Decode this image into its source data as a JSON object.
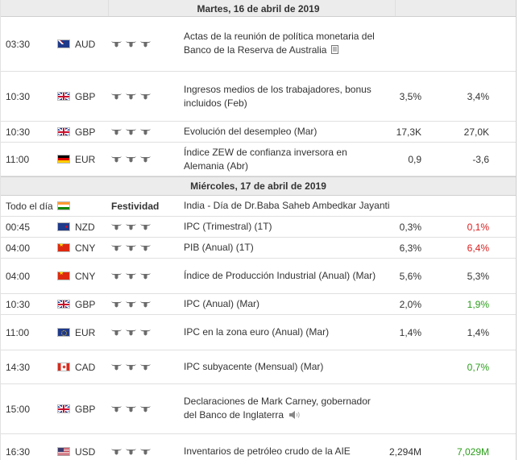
{
  "days": [
    {
      "header": "Martes, 16 de abril de 2019",
      "rows": [
        {
          "time": "03:30",
          "flag": "au",
          "currency": "AUD",
          "event": "Actas de la reunión de política monetaria del Banco de la Reserva de Australia",
          "icon": "document-icon",
          "actual": "",
          "forecast": "",
          "forecast_color": ""
        },
        {
          "time": "10:30",
          "flag": "gb",
          "currency": "GBP",
          "event": "Ingresos medios de los trabajadores, bonus incluidos (Feb)",
          "icon": "",
          "actual": "3,5%",
          "forecast": "3,4%",
          "forecast_color": ""
        },
        {
          "time": "10:30",
          "flag": "gb",
          "currency": "GBP",
          "event": "Evolución del desempleo (Mar)",
          "icon": "",
          "actual": "17,3K",
          "forecast": "27,0K",
          "forecast_color": ""
        },
        {
          "time": "11:00",
          "flag": "de",
          "currency": "EUR",
          "event": "Índice ZEW de confianza inversora en Alemania (Abr)",
          "icon": "",
          "actual": "0,9",
          "forecast": "-3,6",
          "forecast_color": ""
        }
      ]
    },
    {
      "header": "Miércoles, 17 de abril de 2019",
      "holiday": {
        "time": "Todo el día",
        "flag": "in",
        "label": "Festividad",
        "event": "India - Día de Dr.Baba Saheb Ambedkar Jayanti"
      },
      "rows": [
        {
          "time": "00:45",
          "flag": "nz",
          "currency": "NZD",
          "event": "IPC (Trimestral) (1T)",
          "icon": "",
          "actual": "0,3%",
          "forecast": "0,1%",
          "forecast_color": "red"
        },
        {
          "time": "04:00",
          "flag": "cn",
          "currency": "CNY",
          "event": "PIB (Anual) (1T)",
          "icon": "",
          "actual": "6,3%",
          "forecast": "6,4%",
          "forecast_color": "red"
        },
        {
          "time": "04:00",
          "flag": "cn",
          "currency": "CNY",
          "event": "Índice de Producción Industrial (Anual) (Mar)",
          "icon": "",
          "actual": "5,6%",
          "forecast": "5,3%",
          "forecast_color": ""
        },
        {
          "time": "10:30",
          "flag": "gb",
          "currency": "GBP",
          "event": "IPC (Anual) (Mar)",
          "icon": "",
          "actual": "2,0%",
          "forecast": "1,9%",
          "forecast_color": "green"
        },
        {
          "time": "11:00",
          "flag": "eu",
          "currency": "EUR",
          "event": "IPC en la zona euro (Anual) (Mar)",
          "icon": "",
          "actual": "1,4%",
          "forecast": "1,4%",
          "forecast_color": ""
        },
        {
          "time": "14:30",
          "flag": "ca",
          "currency": "CAD",
          "event": "IPC subyacente (Mensual) (Mar)",
          "icon": "",
          "actual": "",
          "forecast": "0,7%",
          "forecast_color": "green"
        },
        {
          "time": "15:00",
          "flag": "gb",
          "currency": "GBP",
          "event": "Declaraciones de Mark Carney, gobernador del Banco de Inglaterra",
          "icon": "speaker-icon",
          "actual": "",
          "forecast": "",
          "forecast_color": ""
        },
        {
          "time": "16:30",
          "flag": "us",
          "currency": "USD",
          "event": "Inventarios de petróleo crudo de la AIE",
          "icon": "",
          "actual": "2,294M",
          "forecast": "7,029M",
          "forecast_color": "green"
        }
      ]
    }
  ]
}
